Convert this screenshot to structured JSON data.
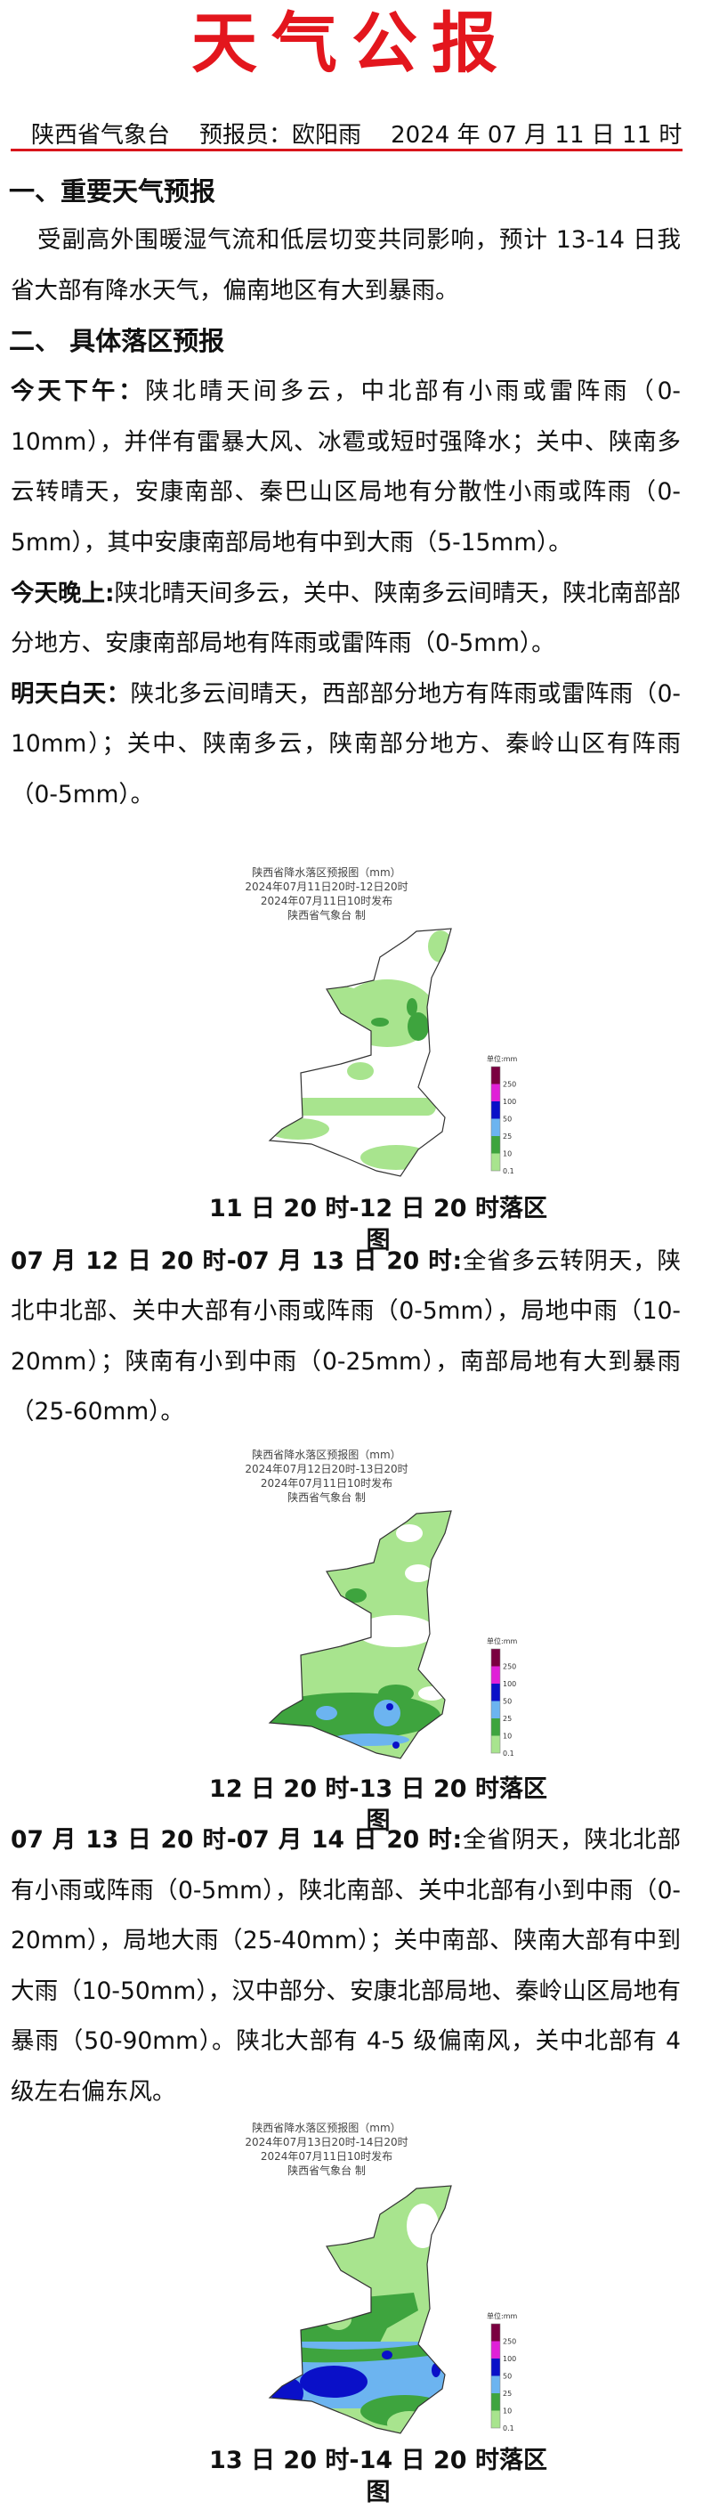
{
  "title": "天气公报",
  "issuer_line": "陕西省气象台    预报员：欧阳雨    2024 年 07 月 11 日 11 时",
  "section1": {
    "heading": "一、重要天气预报",
    "text": "受副高外围暖湿气流和低层切变共同影响，预计 13-14 日我省大部有降水天气，偏南地区有大到暴雨。"
  },
  "section2": {
    "heading": "二、 具体落区预报",
    "periods": [
      {
        "label": "今天下午：",
        "text": "陕北晴天间多云，中北部有小雨或雷阵雨（0-10mm），并伴有雷暴大风、冰雹或短时强降水；关中、陕南多云转晴天，安康南部、秦巴山区局地有分散性小雨或阵雨（0-5mm），其中安康南部局地有中到大雨（5-15mm）。"
      },
      {
        "label": "今天晚上:",
        "text": "陕北晴天间多云，关中、陕南多云间晴天，陕北南部部分地方、安康南部局地有阵雨或雷阵雨（0-5mm）。"
      },
      {
        "label": "明天白天：",
        "text": "陕北多云间晴天，西部部分地方有阵雨或雷阵雨（0-10mm）；关中、陕南多云，陕南部分地方、秦岭山区有阵雨（0-5mm）。"
      },
      {
        "label": "07 月 12 日 20 时-07 月 13 日 20 时:",
        "text": "全省多云转阴天，陕北中北部、关中大部有小雨或阵雨（0-5mm），局地中雨（10-20mm）；陕南有小到中雨（0-25mm），南部局地有大到暴雨（25-60mm）。"
      },
      {
        "label": "07 月 13 日 20 时-07 月 14 日 20 时:",
        "text": "全省阴天，陕北北部有小雨或阵雨（0-5mm），陕北南部、关中北部有小到中雨（0-20mm），局地大雨（25-40mm）；关中南部、陕南大部有中到大雨（10-50mm），汉中部分、安康北部局地、秦岭山区局地有暴雨（50-90mm）。陕北大部有 4-5 级偏南风，关中北部有 4 级左右偏东风。"
      }
    ]
  },
  "maps": [
    {
      "title": "陕西省降水落区预报图（mm）",
      "period": "2024年07月11日20时-12日20时",
      "issued": "2024年07月11日10时发布",
      "maker": "陕西省气象台 制",
      "caption": "11 日 20 时-12 日 20 时落区图"
    },
    {
      "title": "陕西省降水落区预报图（mm）",
      "period": "2024年07月12日20时-13日20时",
      "issued": "2024年07月11日10时发布",
      "maker": "陕西省气象台 制",
      "caption": "12 日 20 时-13 日 20 时落区图"
    },
    {
      "title": "陕西省降水落区预报图（mm）",
      "period": "2024年07月13日20时-14日20时",
      "issued": "2024年07月11日10时发布",
      "maker": "陕西省气象台 制",
      "caption": "13 日 20 时-14 日 20 时落区图"
    }
  ],
  "legend": {
    "unit": "单位:mm",
    "labels": [
      "250",
      "100",
      "50",
      "25",
      "10",
      "0.1"
    ],
    "colors": [
      "#7a0040",
      "#e020d8",
      "#0a10c8",
      "#6cb4f0",
      "#3ea43e",
      "#a8e48e"
    ]
  },
  "colors": {
    "title_red": "#e3161d",
    "rule_red": "#d8141b"
  }
}
